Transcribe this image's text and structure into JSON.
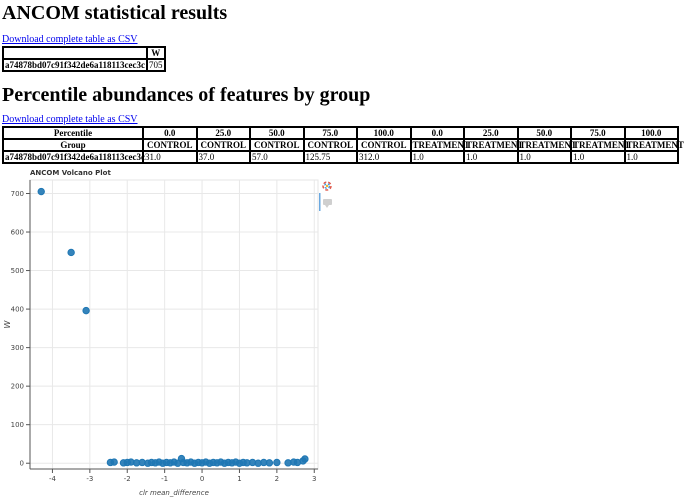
{
  "section1": {
    "title": "ANCOM statistical results",
    "download_label": "Download complete table as CSV",
    "table": {
      "header": [
        "",
        "W"
      ],
      "rows": [
        [
          "a74878bd07c91f342de6a118113cec3c",
          "705"
        ]
      ]
    }
  },
  "section2": {
    "title": "Percentile abundances of features by group",
    "download_label": "Download complete table as CSV",
    "table": {
      "percentile_label": "Percentile",
      "group_label": "Group",
      "percentiles": [
        "0.0",
        "25.0",
        "50.0",
        "75.0",
        "100.0",
        "0.0",
        "25.0",
        "50.0",
        "75.0",
        "100.0"
      ],
      "groups": [
        "CONTROL",
        "CONTROL",
        "CONTROL",
        "CONTROL",
        "CONTROL",
        "TREATMENT",
        "TREATMENT",
        "TREATMENT",
        "TREATMENT",
        "TREATMENT"
      ],
      "rows": [
        {
          "feature": "a74878bd07c91f342de6a118113cec3c",
          "values": [
            "31.0",
            "37.0",
            "57.0",
            "125.75",
            "312.0",
            "1.0",
            "1.0",
            "1.0",
            "1.0",
            "1.0"
          ]
        }
      ]
    }
  },
  "toolbar": {
    "icons": [
      "bokeh-logo-icon",
      "hover-tool-icon"
    ]
  },
  "chart_data": {
    "type": "scatter",
    "title": "ANCOM Volcano Plot",
    "xlabel": "clr mean_difference",
    "ylabel": "W",
    "xlim": [
      -4.6,
      3.1
    ],
    "ylim": [
      -15,
      735
    ],
    "xticks": [
      -4,
      -3,
      -2,
      -1,
      0,
      1,
      2,
      3
    ],
    "yticks": [
      0,
      100,
      200,
      300,
      400,
      500,
      600,
      700
    ],
    "grid": true,
    "color": "#1f77b4",
    "points": [
      {
        "x": -4.3,
        "y": 705
      },
      {
        "x": -3.5,
        "y": 547
      },
      {
        "x": -3.1,
        "y": 396
      },
      {
        "x": -2.45,
        "y": 2
      },
      {
        "x": -2.35,
        "y": 3
      },
      {
        "x": -2.1,
        "y": 1
      },
      {
        "x": -2.0,
        "y": 2
      },
      {
        "x": -1.9,
        "y": 3
      },
      {
        "x": -1.75,
        "y": 1
      },
      {
        "x": -1.6,
        "y": 2
      },
      {
        "x": -1.45,
        "y": 0
      },
      {
        "x": -1.35,
        "y": 2
      },
      {
        "x": -1.25,
        "y": 1
      },
      {
        "x": -1.15,
        "y": 3
      },
      {
        "x": -1.05,
        "y": 0
      },
      {
        "x": -0.95,
        "y": 2
      },
      {
        "x": -0.85,
        "y": 1
      },
      {
        "x": -0.75,
        "y": 3
      },
      {
        "x": -0.65,
        "y": 0
      },
      {
        "x": -0.55,
        "y": 12
      },
      {
        "x": -0.5,
        "y": 2
      },
      {
        "x": -0.4,
        "y": 1
      },
      {
        "x": -0.3,
        "y": 3
      },
      {
        "x": -0.2,
        "y": 0
      },
      {
        "x": -0.1,
        "y": 2
      },
      {
        "x": 0.0,
        "y": 1
      },
      {
        "x": 0.1,
        "y": 3
      },
      {
        "x": 0.2,
        "y": 0
      },
      {
        "x": 0.3,
        "y": 2
      },
      {
        "x": 0.4,
        "y": 1
      },
      {
        "x": 0.5,
        "y": 3
      },
      {
        "x": 0.6,
        "y": 0
      },
      {
        "x": 0.7,
        "y": 2
      },
      {
        "x": 0.8,
        "y": 1
      },
      {
        "x": 0.9,
        "y": 3
      },
      {
        "x": 1.0,
        "y": 0
      },
      {
        "x": 1.1,
        "y": 2
      },
      {
        "x": 1.2,
        "y": 1
      },
      {
        "x": 1.35,
        "y": 2
      },
      {
        "x": 1.5,
        "y": 0
      },
      {
        "x": 1.65,
        "y": 2
      },
      {
        "x": 1.8,
        "y": 1
      },
      {
        "x": 2.0,
        "y": 2
      },
      {
        "x": 2.3,
        "y": 1
      },
      {
        "x": 2.45,
        "y": 3
      },
      {
        "x": 2.55,
        "y": 2
      },
      {
        "x": 2.7,
        "y": 6
      },
      {
        "x": 2.75,
        "y": 11
      }
    ]
  }
}
